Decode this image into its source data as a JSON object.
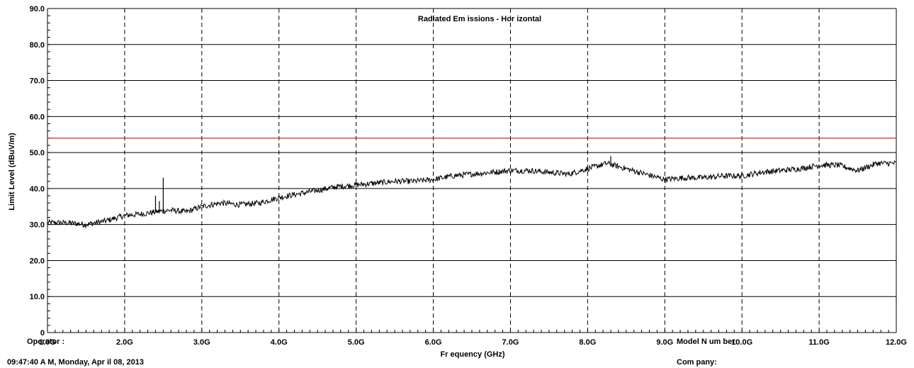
{
  "chart_data": {
    "type": "line",
    "title": "Radiated Em issions - Hor izontal",
    "xlabel": "Fr equency (GHz)",
    "ylabel": "Limit Level (dBuV/m)",
    "xlim": [
      1.0,
      12.0
    ],
    "ylim": [
      0,
      90
    ],
    "x_ticks": [
      1.0,
      2.0,
      3.0,
      4.0,
      5.0,
      6.0,
      7.0,
      8.0,
      9.0,
      10.0,
      11.0,
      12.0
    ],
    "x_tick_labels": [
      "1.0G",
      "2.0G",
      "3.0G",
      "4.0G",
      "5.0G",
      "6.0G",
      "7.0G",
      "8.0G",
      "9.0G",
      "10.0G",
      "11.0G",
      "12.0G"
    ],
    "y_ticks": [
      0,
      10,
      20,
      30,
      40,
      50,
      60,
      70,
      80,
      90
    ],
    "y_tick_labels": [
      "0",
      "10.0",
      "20.0",
      "30.0",
      "40.0",
      "50.0",
      "60.0",
      "70.0",
      "80.0",
      "90.0"
    ],
    "grid": {
      "horizontal": "solid",
      "vertical": "dashed"
    },
    "limit_line": {
      "value": 54,
      "color": "#b22222"
    },
    "series": [
      {
        "color": "#000000",
        "x": [
          1.0,
          1.25,
          1.5,
          1.75,
          2.0,
          2.25,
          2.4,
          2.6,
          2.8,
          3.0,
          3.25,
          3.5,
          3.75,
          4.0,
          4.25,
          4.5,
          4.75,
          5.0,
          5.25,
          5.5,
          5.75,
          6.0,
          6.25,
          6.5,
          6.75,
          7.0,
          7.25,
          7.5,
          7.75,
          8.0,
          8.25,
          8.5,
          8.75,
          9.0,
          9.25,
          9.5,
          9.75,
          10.0,
          10.25,
          10.5,
          10.75,
          11.0,
          11.25,
          11.5,
          11.75,
          12.0
        ],
        "values": [
          30.5,
          30.5,
          30.0,
          31.0,
          32.5,
          33.0,
          33.5,
          34.0,
          33.5,
          35.0,
          36.0,
          35.5,
          36.0,
          37.5,
          38.5,
          39.5,
          40.5,
          41.0,
          41.5,
          42.0,
          42.0,
          42.5,
          43.5,
          44.0,
          44.5,
          45.0,
          45.0,
          44.5,
          44.0,
          45.5,
          47.0,
          45.5,
          44.0,
          42.5,
          43.0,
          43.0,
          43.5,
          43.5,
          44.5,
          45.0,
          45.5,
          46.5,
          46.5,
          45.0,
          47.0,
          47.0
        ],
        "spikes": [
          {
            "x": 2.4,
            "value": 38.0
          },
          {
            "x": 2.45,
            "value": 36.5
          },
          {
            "x": 2.5,
            "value": 43.0
          },
          {
            "x": 8.3,
            "value": 49.0
          }
        ]
      }
    ]
  },
  "footer": {
    "operator_label": "Operator :",
    "timestamp": "09:47:40 A M, Monday, Apr il 08, 2013",
    "model_label": "Model N um ber:",
    "company_label": "Com pany:"
  }
}
